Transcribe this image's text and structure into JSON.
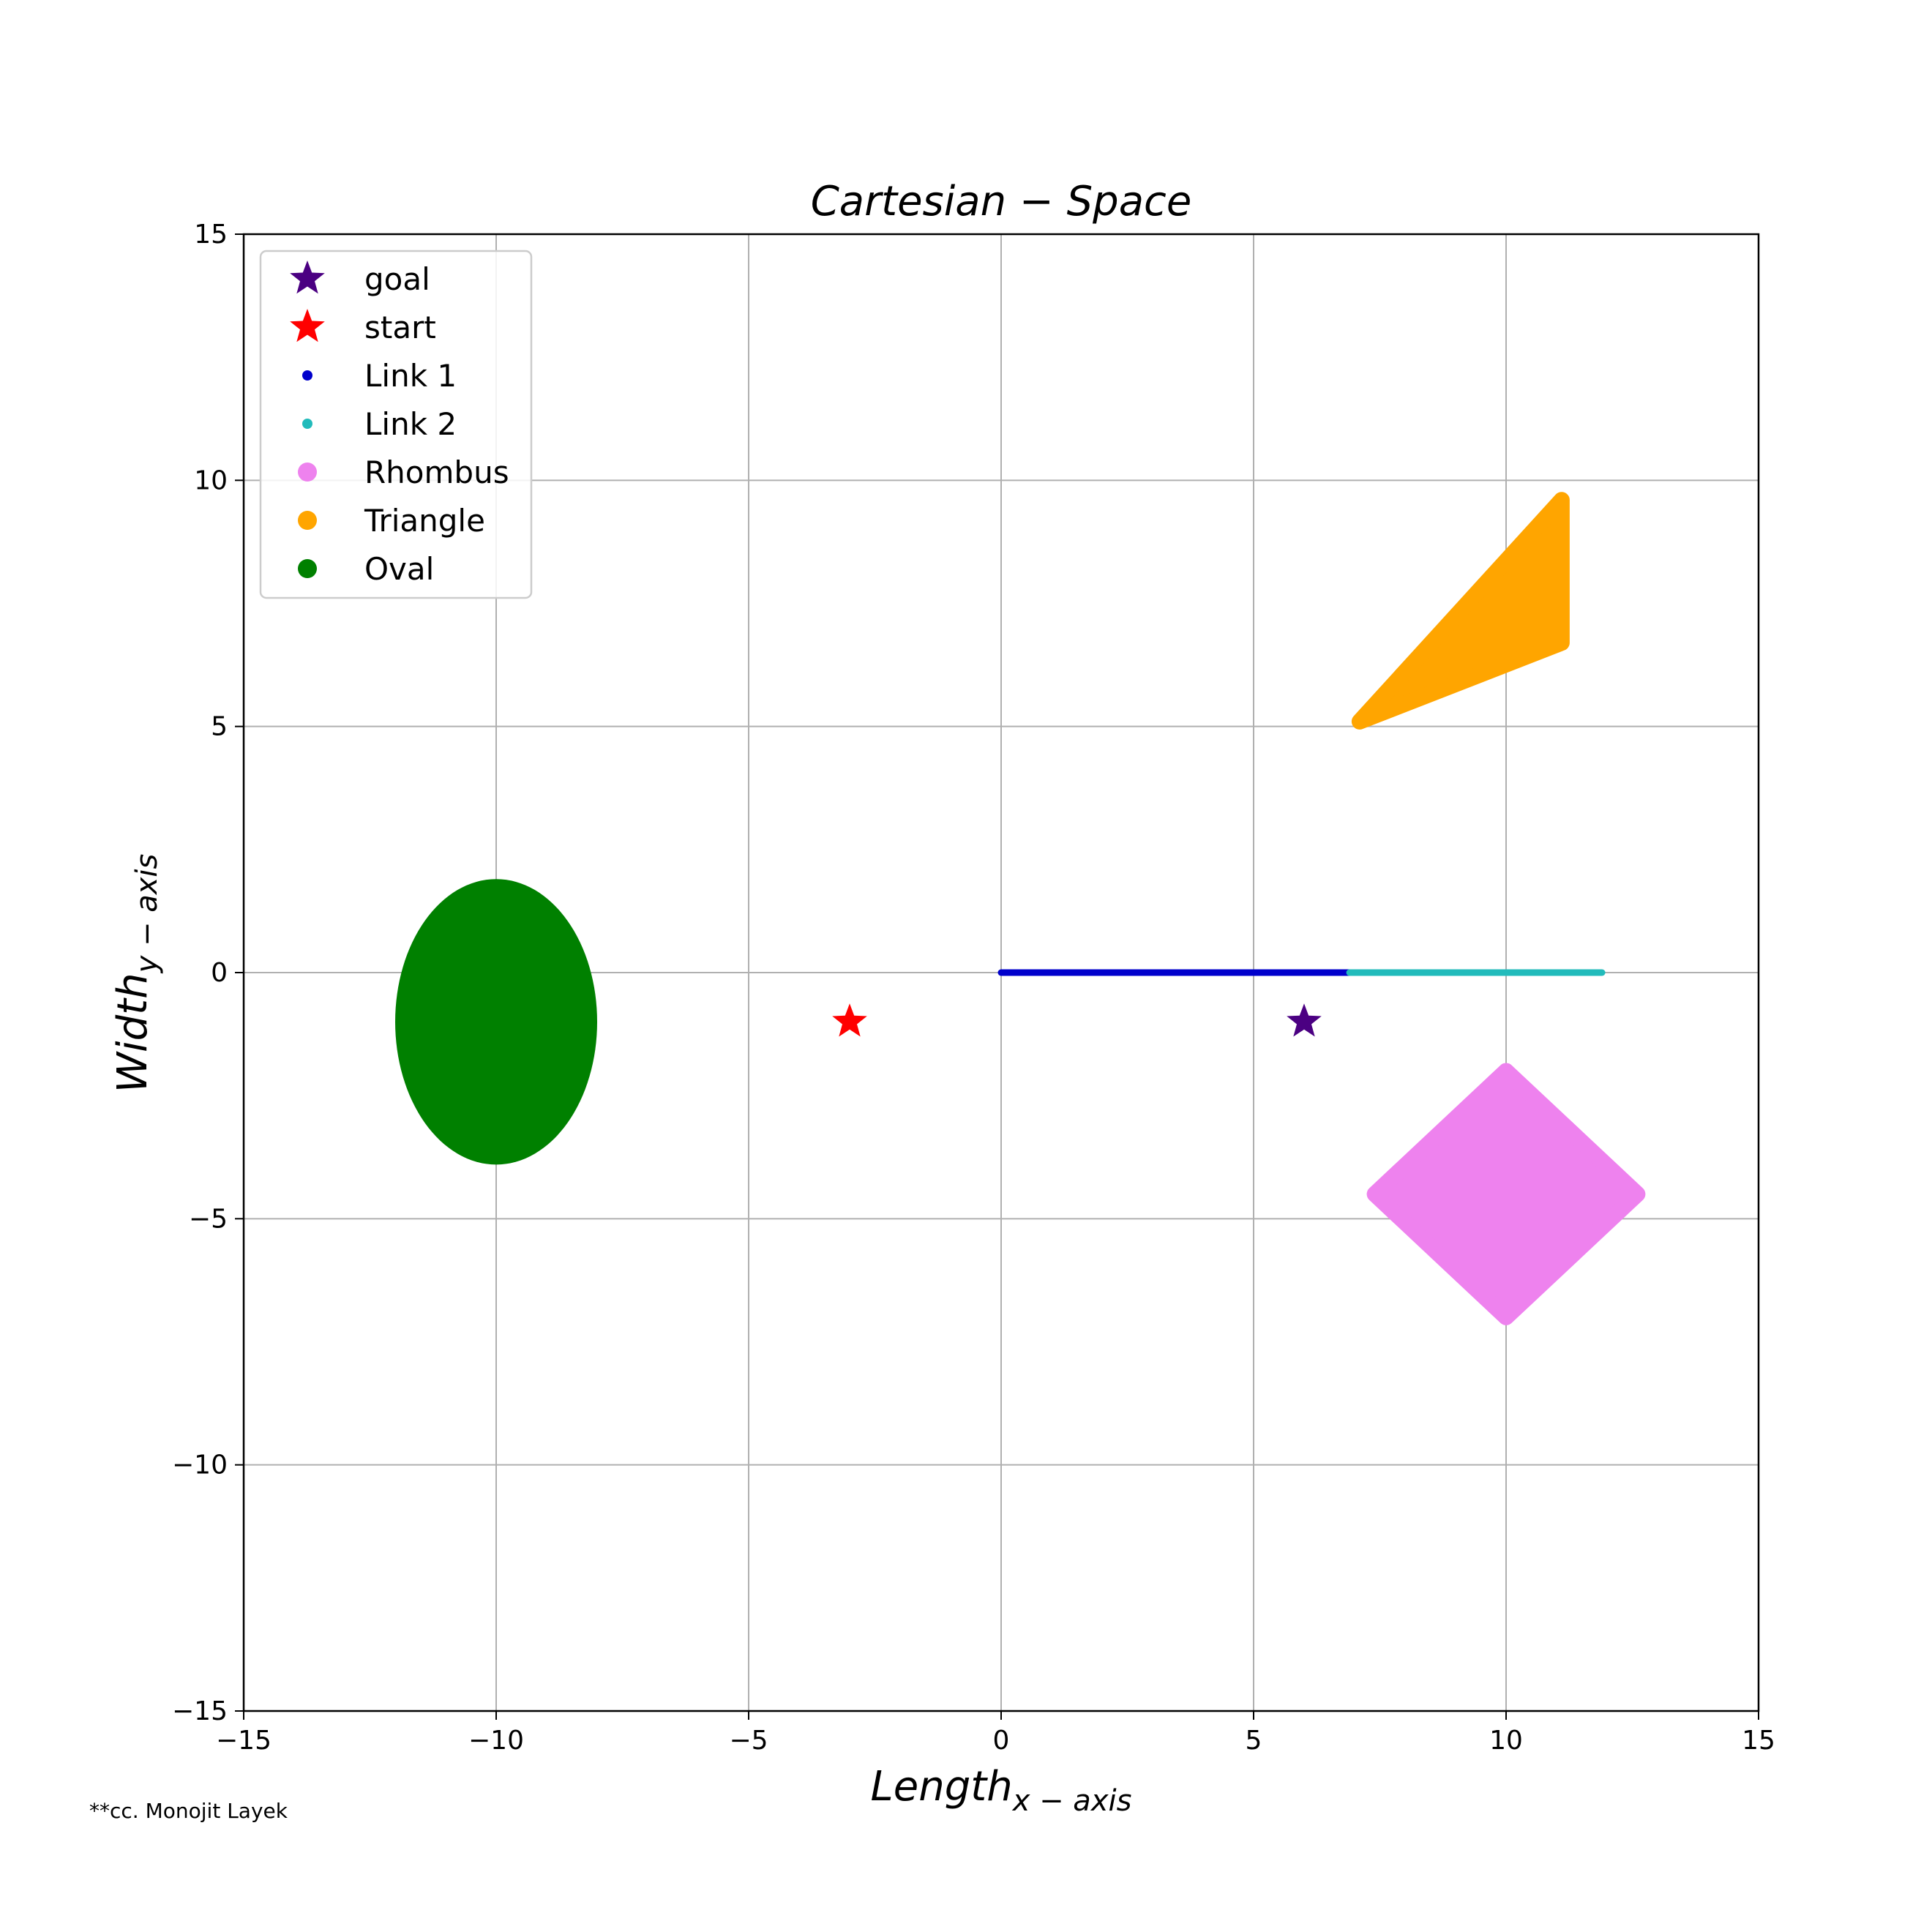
{
  "chart_data": {
    "type": "scatter",
    "title": "Cartesian − Space",
    "xlabel": {
      "main": "Length",
      "sub": "x − axis"
    },
    "ylabel": {
      "main": "Width",
      "sub": "y − axis"
    },
    "xlim": [
      -15,
      15
    ],
    "ylim": [
      -15,
      15
    ],
    "xticks": [
      -15,
      -10,
      -5,
      0,
      5,
      10,
      15
    ],
    "yticks": [
      -15,
      -10,
      -5,
      0,
      5,
      10,
      15
    ],
    "xtick_labels": [
      "−15",
      "−10",
      "−5",
      "0",
      "5",
      "10",
      "15"
    ],
    "ytick_labels": [
      "−15",
      "−10",
      "−5",
      "0",
      "5",
      "10",
      "15"
    ],
    "grid": true,
    "legend_position": "top-left",
    "series": [
      {
        "name": "goal",
        "marker": "star",
        "color": "#4b0082",
        "points": [
          [
            6,
            -1
          ]
        ]
      },
      {
        "name": "start",
        "marker": "star",
        "color": "#ff0000",
        "points": [
          [
            -3,
            -1
          ]
        ]
      },
      {
        "name": "Link 1",
        "marker": "dot-small",
        "color": "#0000cc",
        "segment": {
          "from": [
            0,
            0
          ],
          "to": [
            6.9,
            0
          ]
        }
      },
      {
        "name": "Link 2",
        "marker": "dot-small",
        "color": "#22bbbb",
        "segment": {
          "from": [
            6.9,
            0
          ],
          "to": [
            11.9,
            0
          ]
        }
      },
      {
        "name": "Rhombus",
        "marker": "dot",
        "color": "#ee82ee",
        "polygon": [
          [
            10,
            -2
          ],
          [
            12.6,
            -4.5
          ],
          [
            10,
            -7
          ],
          [
            7.4,
            -4.5
          ]
        ]
      },
      {
        "name": "Triangle",
        "marker": "dot",
        "color": "#ffa500",
        "polygon": [
          [
            7.1,
            5.1
          ],
          [
            11.1,
            9.6
          ],
          [
            11.1,
            6.7
          ]
        ]
      },
      {
        "name": "Oval",
        "marker": "dot",
        "color": "#008000",
        "ellipse": {
          "center": [
            -10,
            -1
          ],
          "rx": 2,
          "ry": 2.9
        }
      }
    ],
    "credit": "**cc. Monojit Layek"
  }
}
